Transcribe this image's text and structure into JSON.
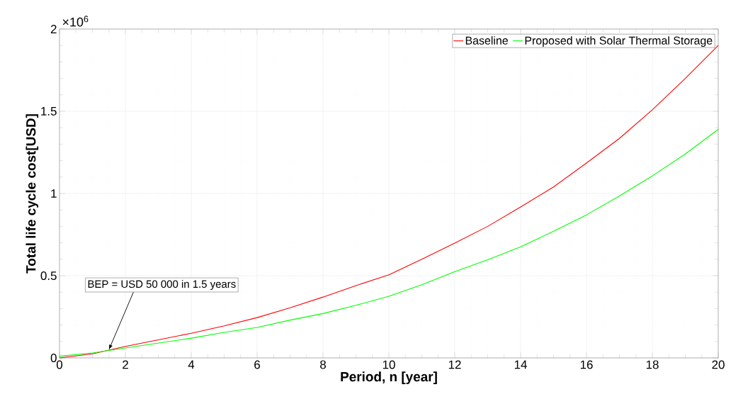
{
  "chart_data": {
    "type": "line",
    "xlabel": "Period, n [year]",
    "ylabel": "Total life cycle cost[USD]",
    "x": [
      0,
      1,
      2,
      3,
      4,
      5,
      6,
      7,
      8,
      9,
      10,
      11,
      12,
      13,
      14,
      15,
      16,
      17,
      18,
      19,
      20
    ],
    "series": [
      {
        "name": "Baseline",
        "color": "#ff0000",
        "values": [
          0,
          0.025,
          0.07,
          0.11,
          0.15,
          0.195,
          0.245,
          0.305,
          0.37,
          0.44,
          0.505,
          0.6,
          0.698,
          0.8,
          0.918,
          1.04,
          1.185,
          1.335,
          1.509,
          1.7,
          1.9
        ]
      },
      {
        "name": "Proposed with Solar Thermal Storage",
        "color": "#00ff00",
        "values": [
          0.01,
          0.03,
          0.06,
          0.09,
          0.12,
          0.155,
          0.185,
          0.23,
          0.27,
          0.32,
          0.375,
          0.445,
          0.525,
          0.597,
          0.676,
          0.77,
          0.87,
          0.985,
          1.107,
          1.24,
          1.39
        ]
      }
    ],
    "xlim": [
      0,
      20
    ],
    "xticks": [
      0,
      2,
      4,
      6,
      8,
      10,
      12,
      14,
      16,
      18,
      20
    ],
    "ylim": [
      0,
      2
    ],
    "yticks": [
      0,
      0.5,
      1,
      1.5,
      2
    ],
    "annotations": [
      "×10$^{6}$",
      {
        "text": "BEP = USD 50 000 in 1.5 years",
        "x": 1.5,
        "y": 0.05
      }
    ],
    "grid": true,
    "legend": "top right",
    "line_style": "solid",
    "marker": "none"
  }
}
